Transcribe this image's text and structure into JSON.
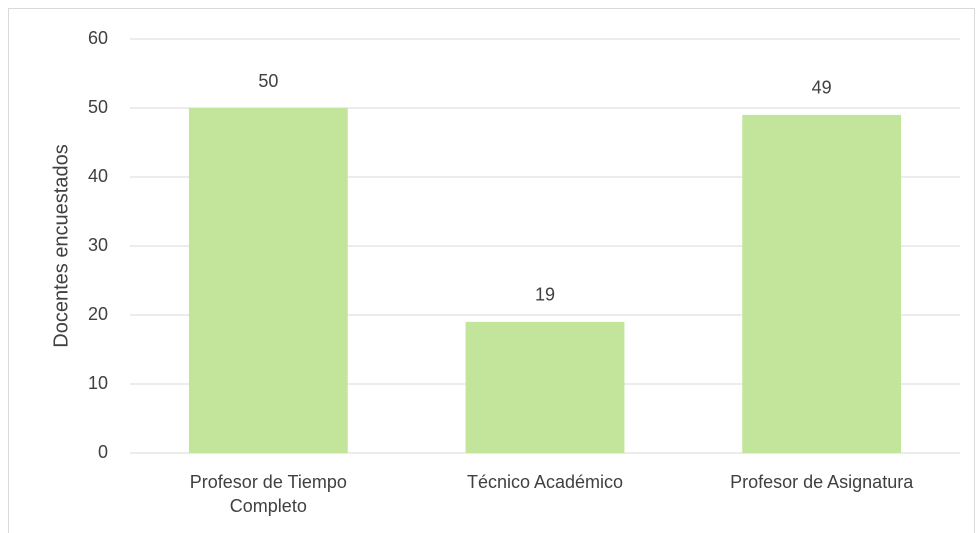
{
  "chart_data": {
    "type": "bar",
    "ylabel": "Docentes encuestados",
    "categories": [
      "Profesor de Tiempo Completo",
      "Técnico Académico",
      "Profesor de Asignatura"
    ],
    "values": [
      50,
      19,
      49
    ],
    "color": "#c3e59b",
    "ylim": [
      0,
      60
    ],
    "yticks": [
      0,
      10,
      20,
      30,
      40,
      50,
      60
    ],
    "grid": true,
    "data_labels": true
  }
}
